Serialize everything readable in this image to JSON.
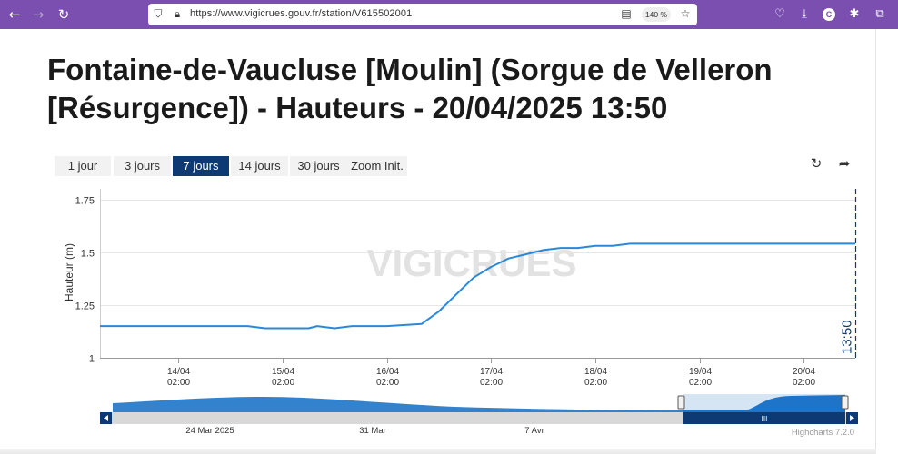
{
  "browser": {
    "url": "https://www.vigicrues.gouv.fr/station/V615502001",
    "zoom": "140 %",
    "profile_initial": "C"
  },
  "page": {
    "title": "Fontaine-de-Vaucluse [Moulin] (Sorgue de Velleron [Résurgence]) - Hauteurs - 20/04/2025 13:50"
  },
  "range_buttons": [
    "1 jour",
    "3 jours",
    "7 jours",
    "14 jours",
    "30 jours",
    "Zoom Init."
  ],
  "active_range": "7 jours",
  "chart_data": {
    "type": "line",
    "title": "",
    "xlabel": "",
    "ylabel": "Hauteur (m)",
    "ylim": [
      1,
      1.8
    ],
    "yticks": [
      1,
      1.25,
      1.5,
      1.75
    ],
    "ytick_labels": [
      "1",
      "1.25",
      "1.5",
      "1.75"
    ],
    "xlim": [
      "2025-04-13 08:00",
      "2025-04-20 13:50"
    ],
    "xticks": [
      "2025-04-14 02:00",
      "2025-04-15 02:00",
      "2025-04-16 02:00",
      "2025-04-17 02:00",
      "2025-04-18 02:00",
      "2025-04-19 02:00",
      "2025-04-20 02:00"
    ],
    "xtick_labels": [
      [
        "14/04",
        "02:00"
      ],
      [
        "15/04",
        "02:00"
      ],
      [
        "16/04",
        "02:00"
      ],
      [
        "17/04",
        "02:00"
      ],
      [
        "18/04",
        "02:00"
      ],
      [
        "19/04",
        "02:00"
      ],
      [
        "20/04",
        "02:00"
      ]
    ],
    "grid": "horizontal",
    "line_color": "#2b88d8",
    "watermark": "VIGICRUES",
    "current_time_label": "13:50",
    "series": [
      {
        "x": [
          "2025-04-13 08:00",
          "2025-04-14 02:00",
          "2025-04-14 18:00",
          "2025-04-14 22:00",
          "2025-04-15 08:00",
          "2025-04-15 10:00",
          "2025-04-15 14:00",
          "2025-04-15 18:00",
          "2025-04-16 02:00",
          "2025-04-16 10:00",
          "2025-04-16 14:00",
          "2025-04-16 18:00",
          "2025-04-16 22:00",
          "2025-04-17 02:00",
          "2025-04-17 06:00",
          "2025-04-17 10:00",
          "2025-04-17 14:00",
          "2025-04-17 18:00",
          "2025-04-17 22:00",
          "2025-04-18 02:00",
          "2025-04-18 06:00",
          "2025-04-18 10:00",
          "2025-04-18 14:00",
          "2025-04-18 18:00",
          "2025-04-18 22:00",
          "2025-04-19 02:00",
          "2025-04-19 06:00",
          "2025-04-19 12:00",
          "2025-04-19 18:00",
          "2025-04-20 00:00",
          "2025-04-20 06:00",
          "2025-04-20 13:50"
        ],
        "y": [
          1.15,
          1.15,
          1.15,
          1.14,
          1.14,
          1.15,
          1.14,
          1.15,
          1.15,
          1.16,
          1.22,
          1.3,
          1.38,
          1.43,
          1.47,
          1.49,
          1.51,
          1.52,
          1.52,
          1.53,
          1.53,
          1.54,
          1.54,
          1.54,
          1.54,
          1.54,
          1.54,
          1.54,
          1.54,
          1.54,
          1.54,
          1.54
        ]
      }
    ],
    "navigator": {
      "tick_labels": [
        "24 Mar 2025",
        "31 Mar",
        "7 Avr"
      ],
      "grip_label": "III"
    },
    "credits": "Highcharts 7.2.0"
  }
}
